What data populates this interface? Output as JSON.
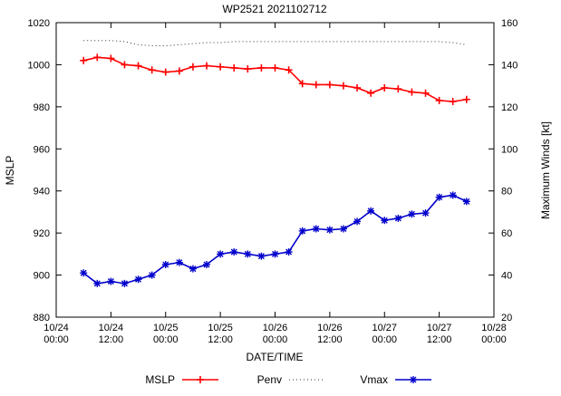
{
  "chart_data": {
    "type": "line",
    "title": "WP2521 2021102712",
    "xlabel": "DATE/TIME",
    "ylabel_left": "MSLP",
    "ylabel_right": "Maximum Winds [kt]",
    "ylim_left": [
      880,
      1020
    ],
    "ylim_right": [
      20,
      160
    ],
    "ytick_step": 20,
    "x_range_hours": [
      0,
      96
    ],
    "grid": false,
    "legend_position": "bottom-center",
    "background_color": "#ffffff",
    "xticks": [
      {
        "hour": 0,
        "label1": "10/24",
        "label2": "00:00"
      },
      {
        "hour": 12,
        "label1": "10/24",
        "label2": "12:00"
      },
      {
        "hour": 24,
        "label1": "10/25",
        "label2": "00:00"
      },
      {
        "hour": 36,
        "label1": "10/25",
        "label2": "12:00"
      },
      {
        "hour": 48,
        "label1": "10/26",
        "label2": "00:00"
      },
      {
        "hour": 60,
        "label1": "10/26",
        "label2": "12:00"
      },
      {
        "hour": 72,
        "label1": "10/27",
        "label2": "00:00"
      },
      {
        "hour": 84,
        "label1": "10/27",
        "label2": "12:00"
      },
      {
        "hour": 96,
        "label1": "10/28",
        "label2": "00:00"
      }
    ],
    "x_hours": [
      6,
      9,
      12,
      15,
      18,
      21,
      24,
      27,
      30,
      33,
      36,
      39,
      42,
      45,
      48,
      51,
      54,
      57,
      60,
      63,
      66,
      69,
      72,
      75,
      78,
      81,
      84,
      87,
      90
    ],
    "series": [
      {
        "name": "MSLP",
        "axis": "left",
        "color": "#ff0000",
        "marker": "plus",
        "style": "solid",
        "values": [
          1002,
          1003.5,
          1003,
          1000,
          999.5,
          997.5,
          996.5,
          997,
          999,
          999.5,
          999,
          998.5,
          998,
          998.5,
          998.5,
          997.5,
          991,
          990.5,
          990.5,
          990,
          989,
          986.5,
          989,
          988.5,
          987,
          986.5,
          983,
          982.5,
          983.5
        ]
      },
      {
        "name": "Penv",
        "axis": "left",
        "color": "#333333",
        "marker": "none",
        "style": "dotted",
        "values": [
          1011.5,
          1011.5,
          1011.5,
          1011,
          1009.5,
          1009,
          1009,
          1009.5,
          1010,
          1010.5,
          1010.5,
          1011,
          1011,
          1011,
          1011,
          1011,
          1011,
          1011,
          1011,
          1011,
          1011,
          1011,
          1011,
          1011,
          1011,
          1011,
          1011,
          1010.5,
          1009.5
        ]
      },
      {
        "name": "Vmax",
        "axis": "right",
        "color": "#0000cc",
        "marker": "star",
        "style": "solid",
        "values": [
          41,
          36,
          37,
          36,
          38,
          40,
          45,
          46,
          43,
          45,
          50,
          51,
          50,
          49,
          50,
          51,
          61,
          62,
          61.5,
          62,
          65.5,
          70.5,
          66,
          67,
          69,
          69.5,
          77,
          78,
          75
        ]
      }
    ]
  }
}
